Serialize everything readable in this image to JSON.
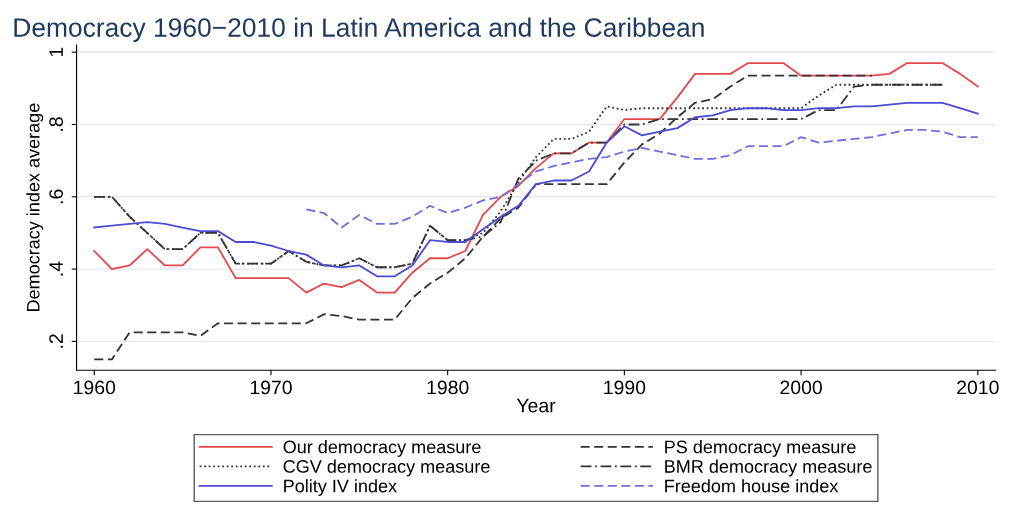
{
  "chart_data": {
    "type": "line",
    "title": "Democracy 1960−2010 in Latin America and the Caribbean",
    "xlabel": "Year",
    "ylabel": "Democracy index average",
    "xlim": [
      1959,
      2011
    ],
    "ylim": [
      0.12,
      1.02
    ],
    "xticks": [
      1960,
      1970,
      1980,
      1990,
      2000,
      2010
    ],
    "yticks": [
      {
        "value": 0.2,
        "label": ".2"
      },
      {
        "value": 0.4,
        "label": ".4"
      },
      {
        "value": 0.6,
        "label": ".6"
      },
      {
        "value": 0.8,
        "label": ".8"
      },
      {
        "value": 1,
        "label": "1"
      }
    ],
    "grid": "y",
    "legend": "bottom",
    "series": [
      {
        "name": "Our democracy measure",
        "color": "#e5484d",
        "line_style": "solid",
        "x": [
          1960,
          1961,
          1962,
          1963,
          1964,
          1965,
          1966,
          1967,
          1968,
          1969,
          1970,
          1971,
          1972,
          1973,
          1974,
          1975,
          1976,
          1977,
          1978,
          1979,
          1980,
          1981,
          1982,
          1983,
          1984,
          1985,
          1986,
          1987,
          1988,
          1989,
          1990,
          1991,
          1992,
          1993,
          1994,
          1995,
          1996,
          1997,
          1998,
          1999,
          2000,
          2001,
          2002,
          2003,
          2004,
          2005,
          2006,
          2007,
          2008,
          2009,
          2010
        ],
        "values": [
          0.45,
          0.4,
          0.41,
          0.455,
          0.41,
          0.41,
          0.46,
          0.46,
          0.375,
          0.375,
          0.375,
          0.375,
          0.335,
          0.36,
          0.35,
          0.37,
          0.335,
          0.335,
          0.39,
          0.43,
          0.43,
          0.45,
          0.55,
          0.6,
          0.63,
          0.68,
          0.72,
          0.72,
          0.75,
          0.75,
          0.815,
          0.815,
          0.815,
          0.875,
          0.94,
          0.94,
          0.94,
          0.97,
          0.97,
          0.97,
          0.935,
          0.935,
          0.935,
          0.935,
          0.935,
          0.94,
          0.97,
          0.97,
          0.97,
          0.94,
          0.905
        ]
      },
      {
        "name": "PS democracy measure",
        "color": "#333333",
        "line_style": "dashed",
        "x": [
          1960,
          1961,
          1962,
          1963,
          1964,
          1965,
          1966,
          1967,
          1968,
          1969,
          1970,
          1971,
          1972,
          1973,
          1974,
          1975,
          1976,
          1977,
          1978,
          1979,
          1980,
          1981,
          1982,
          1983,
          1984,
          1985,
          1986,
          1987,
          1988,
          1989,
          1990,
          1991,
          1992,
          1993,
          1994,
          1995,
          1996,
          1997,
          1998,
          1999,
          2000,
          2001,
          2002,
          2003,
          2004
        ],
        "values": [
          0.15,
          0.15,
          0.225,
          0.225,
          0.225,
          0.225,
          0.215,
          0.25,
          0.25,
          0.25,
          0.25,
          0.25,
          0.25,
          0.275,
          0.27,
          0.26,
          0.26,
          0.26,
          0.32,
          0.36,
          0.39,
          0.43,
          0.49,
          0.54,
          0.57,
          0.635,
          0.635,
          0.635,
          0.635,
          0.635,
          0.695,
          0.745,
          0.775,
          0.82,
          0.86,
          0.87,
          0.905,
          0.935,
          0.935,
          0.935,
          0.935,
          0.935,
          0.935,
          0.935,
          0.935
        ]
      },
      {
        "name": "CGV democracy measure",
        "color": "#333333",
        "line_style": "dotted",
        "x": [
          1960,
          1961,
          1962,
          1963,
          1964,
          1965,
          1966,
          1967,
          1968,
          1969,
          1970,
          1971,
          1972,
          1973,
          1974,
          1975,
          1976,
          1977,
          1978,
          1979,
          1980,
          1981,
          1982,
          1983,
          1984,
          1985,
          1986,
          1987,
          1988,
          1989,
          1990,
          1991,
          1992,
          1993,
          1994,
          1995,
          1996,
          1997,
          1998,
          1999,
          2000,
          2001,
          2002,
          2003,
          2004,
          2005,
          2006,
          2007,
          2008
        ],
        "values": [
          0.6,
          0.6,
          0.545,
          0.5,
          0.455,
          0.455,
          0.5,
          0.5,
          0.415,
          0.415,
          0.415,
          0.45,
          0.42,
          0.41,
          0.41,
          0.43,
          0.405,
          0.405,
          0.415,
          0.52,
          0.48,
          0.48,
          0.5,
          0.56,
          0.64,
          0.71,
          0.76,
          0.76,
          0.78,
          0.85,
          0.84,
          0.845,
          0.845,
          0.845,
          0.845,
          0.845,
          0.845,
          0.845,
          0.845,
          0.845,
          0.845,
          0.88,
          0.91,
          0.91,
          0.91,
          0.91,
          0.91,
          0.91,
          0.91
        ]
      },
      {
        "name": "BMR democracy measure",
        "color": "#333333",
        "line_style": "dashdot",
        "x": [
          1960,
          1961,
          1962,
          1963,
          1964,
          1965,
          1966,
          1967,
          1968,
          1969,
          1970,
          1971,
          1972,
          1973,
          1974,
          1975,
          1976,
          1977,
          1978,
          1979,
          1980,
          1981,
          1982,
          1983,
          1984,
          1985,
          1986,
          1987,
          1988,
          1989,
          1990,
          1991,
          1992,
          1993,
          1994,
          1995,
          1996,
          1997,
          1998,
          1999,
          2000,
          2001,
          2002,
          2003,
          2004,
          2005,
          2006,
          2007,
          2008
        ],
        "values": [
          0.6,
          0.6,
          0.545,
          0.5,
          0.455,
          0.455,
          0.5,
          0.5,
          0.415,
          0.415,
          0.415,
          0.45,
          0.42,
          0.41,
          0.41,
          0.43,
          0.405,
          0.405,
          0.415,
          0.52,
          0.48,
          0.48,
          0.49,
          0.53,
          0.65,
          0.7,
          0.72,
          0.72,
          0.75,
          0.75,
          0.8,
          0.8,
          0.815,
          0.815,
          0.815,
          0.815,
          0.815,
          0.815,
          0.815,
          0.815,
          0.815,
          0.84,
          0.84,
          0.905,
          0.91,
          0.91,
          0.91,
          0.91,
          0.91
        ]
      },
      {
        "name": "Polity IV index",
        "color": "#4b4bd6",
        "line_style": "solid",
        "x": [
          1960,
          1961,
          1962,
          1963,
          1964,
          1965,
          1966,
          1967,
          1968,
          1969,
          1970,
          1971,
          1972,
          1973,
          1974,
          1975,
          1976,
          1977,
          1978,
          1979,
          1980,
          1981,
          1982,
          1983,
          1984,
          1985,
          1986,
          1987,
          1988,
          1989,
          1990,
          1991,
          1992,
          1993,
          1994,
          1995,
          1996,
          1997,
          1998,
          1999,
          2000,
          2001,
          2002,
          2003,
          2004,
          2005,
          2006,
          2007,
          2008,
          2009,
          2010
        ],
        "values": [
          0.515,
          0.52,
          0.525,
          0.53,
          0.525,
          0.515,
          0.505,
          0.505,
          0.475,
          0.475,
          0.465,
          0.45,
          0.44,
          0.41,
          0.405,
          0.41,
          0.38,
          0.38,
          0.41,
          0.48,
          0.475,
          0.475,
          0.51,
          0.545,
          0.575,
          0.635,
          0.645,
          0.645,
          0.67,
          0.75,
          0.795,
          0.77,
          0.78,
          0.79,
          0.82,
          0.825,
          0.84,
          0.845,
          0.845,
          0.84,
          0.84,
          0.845,
          0.845,
          0.85,
          0.85,
          0.855,
          0.86,
          0.86,
          0.86,
          0.845,
          0.83
        ]
      },
      {
        "name": "Freedom house index",
        "color": "#6f6fe0",
        "line_style": "dashed",
        "x": [
          1972,
          1973,
          1974,
          1975,
          1976,
          1977,
          1978,
          1979,
          1980,
          1981,
          1982,
          1983,
          1984,
          1985,
          1986,
          1987,
          1988,
          1989,
          1990,
          1991,
          1992,
          1993,
          1994,
          1995,
          1996,
          1997,
          1998,
          1999,
          2000,
          2001,
          2002,
          2003,
          2004,
          2005,
          2006,
          2007,
          2008,
          2009,
          2010
        ],
        "values": [
          0.565,
          0.555,
          0.515,
          0.55,
          0.525,
          0.525,
          0.545,
          0.575,
          0.555,
          0.57,
          0.59,
          0.6,
          0.635,
          0.67,
          0.685,
          0.695,
          0.705,
          0.71,
          0.725,
          0.735,
          0.725,
          0.715,
          0.705,
          0.705,
          0.715,
          0.74,
          0.74,
          0.74,
          0.765,
          0.75,
          0.755,
          0.76,
          0.765,
          0.775,
          0.785,
          0.785,
          0.78,
          0.765,
          0.765
        ]
      }
    ]
  }
}
